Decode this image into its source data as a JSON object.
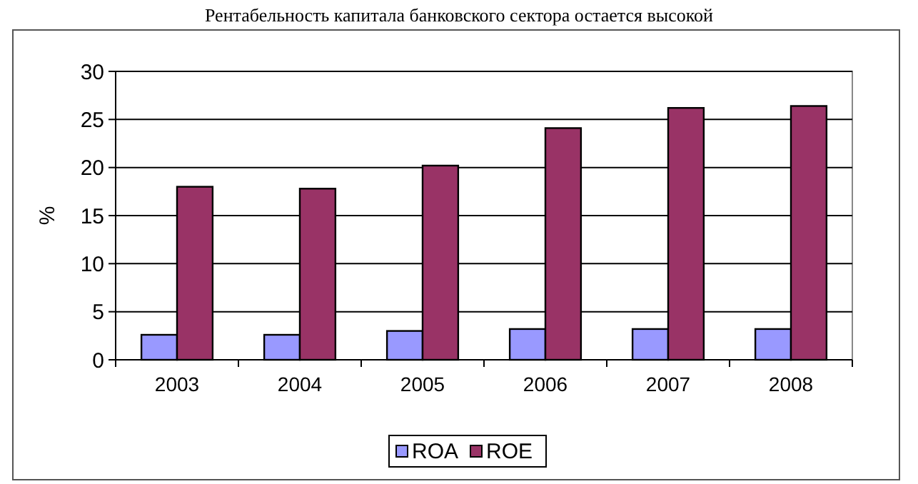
{
  "chart_data": {
    "type": "bar",
    "title": "Рентабельность капитала банковского сектора остается высокой",
    "ylabel": "%",
    "categories": [
      "2003",
      "2004",
      "2005",
      "2006",
      "2007",
      "2008"
    ],
    "series": [
      {
        "name": "ROA",
        "color": "#9999ff",
        "values": [
          2.6,
          2.6,
          3.0,
          3.2,
          3.2,
          3.2
        ]
      },
      {
        "name": "ROE",
        "color": "#993366",
        "values": [
          18.0,
          17.8,
          20.2,
          24.1,
          26.2,
          26.4
        ]
      }
    ],
    "ylim": [
      0,
      30
    ],
    "yticks": [
      0,
      5,
      10,
      15,
      20,
      25,
      30
    ],
    "grid": "y",
    "legend": "bottom"
  }
}
